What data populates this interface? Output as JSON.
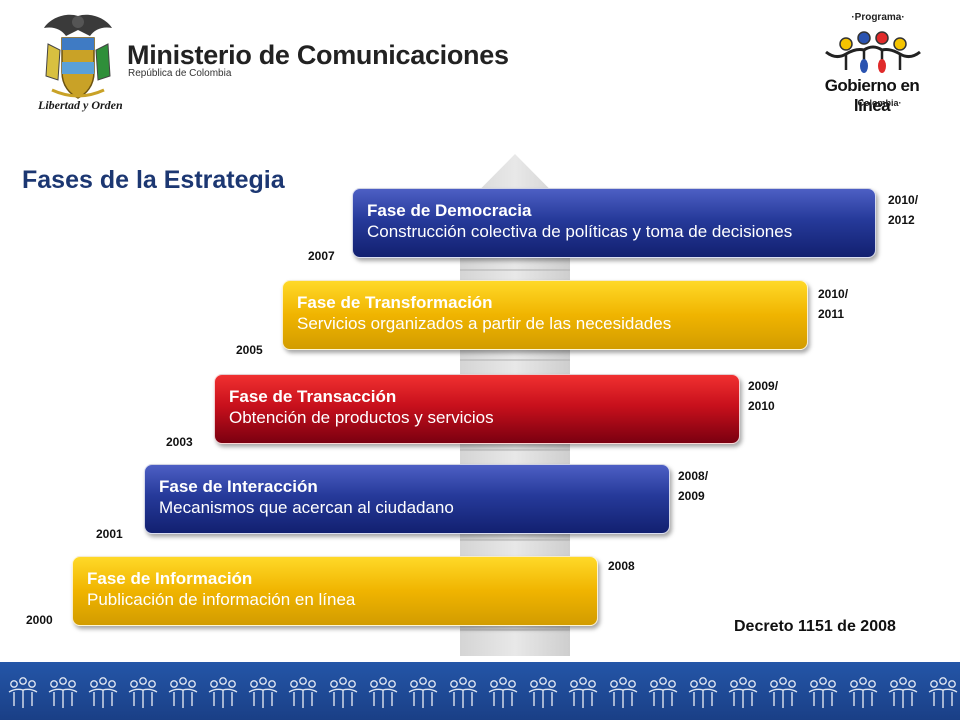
{
  "header": {
    "ministry_name": "Ministerio de Comunicaciones",
    "ministry_sub": "República de Colombia",
    "crest_motto": "Libertad y Orden",
    "program_top": "·Programa·",
    "program_name": "Gobierno en línea",
    "program_bottom": "·Colombia·"
  },
  "title": "Fases de la Estrategia",
  "phases": [
    {
      "name": "Fase de Democracia",
      "desc": "Construcción colectiva de políticas y toma de decisiones",
      "start": "2007",
      "end": "2010/ 2012",
      "color": "#263a9a"
    },
    {
      "name": "Fase de Transformación",
      "desc": "Servicios organizados a partir de las necesidades",
      "start": "2005",
      "end": "2010/ 2011",
      "color": "#f0b400"
    },
    {
      "name": "Fase de Transacción",
      "desc": "Obtención de productos y servicios",
      "start": "2003",
      "end": "2009/ 2010",
      "color": "#c8101c"
    },
    {
      "name": "Fase de Interacción",
      "desc": "Mecanismos que acercan al ciudadano",
      "start": "2001",
      "end": "2008/ 2009",
      "color": "#263a9a"
    },
    {
      "name": "Fase de Información",
      "desc": "Publicación de información en línea",
      "start": "2000",
      "end": "2008",
      "color": "#f0b400"
    }
  ],
  "decree": "Decreto 1151 de 2008"
}
